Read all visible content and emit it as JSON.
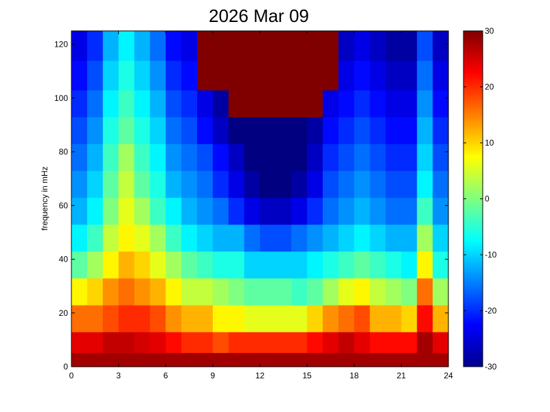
{
  "chart_data": {
    "type": "heatmap",
    "title": "2026 Mar 09",
    "xlabel": "",
    "ylabel": "frequency in mHz",
    "xlim": [
      0,
      24
    ],
    "ylim": [
      0,
      125
    ],
    "x_ticks": [
      0,
      3,
      6,
      9,
      12,
      15,
      18,
      21,
      24
    ],
    "y_ticks": [
      0,
      20,
      40,
      60,
      80,
      100,
      120
    ],
    "colorbar": {
      "range": [
        -30,
        30
      ],
      "ticks": [
        -30,
        -20,
        -10,
        0,
        10,
        20,
        30
      ],
      "colormap": "jet"
    },
    "x_bins": 24,
    "y_bins": 13,
    "y_bin_centers": [
      2.5,
      8,
      18,
      28,
      38,
      48,
      58,
      68,
      78,
      88,
      98,
      108,
      120
    ],
    "values": [
      [
        28,
        28,
        28,
        28,
        28,
        28,
        28,
        28,
        28,
        28,
        28,
        28,
        28,
        28,
        28,
        28,
        28,
        28,
        28,
        28,
        28,
        28,
        28,
        28
      ],
      [
        24,
        24,
        26,
        26,
        25,
        24,
        22,
        20,
        20,
        18,
        20,
        20,
        20,
        20,
        20,
        22,
        24,
        26,
        24,
        22,
        22,
        22,
        28,
        24
      ],
      [
        16,
        16,
        18,
        20,
        20,
        18,
        14,
        12,
        12,
        8,
        8,
        6,
        6,
        6,
        6,
        10,
        14,
        16,
        18,
        12,
        12,
        10,
        22,
        12
      ],
      [
        8,
        10,
        14,
        16,
        14,
        12,
        8,
        4,
        4,
        2,
        0,
        -2,
        -2,
        -2,
        -4,
        -2,
        2,
        6,
        8,
        4,
        2,
        0,
        16,
        2
      ],
      [
        -2,
        2,
        8,
        12,
        10,
        6,
        2,
        -2,
        -4,
        -6,
        -6,
        -10,
        -10,
        -10,
        -10,
        -8,
        -6,
        -4,
        -2,
        -4,
        -6,
        -8,
        8,
        -6
      ],
      [
        -8,
        -4,
        4,
        8,
        6,
        2,
        -4,
        -8,
        -10,
        -12,
        -12,
        -16,
        -18,
        -18,
        -16,
        -14,
        -12,
        -10,
        -8,
        -10,
        -12,
        -12,
        2,
        -10
      ],
      [
        -12,
        -8,
        0,
        6,
        2,
        -4,
        -8,
        -12,
        -14,
        -16,
        -20,
        -24,
        -26,
        -26,
        -24,
        -20,
        -16,
        -14,
        -12,
        -14,
        -16,
        -16,
        -4,
        -14
      ],
      [
        -14,
        -10,
        -2,
        4,
        -2,
        -6,
        -12,
        -14,
        -16,
        -20,
        -24,
        -28,
        -30,
        -30,
        -28,
        -24,
        -18,
        -16,
        -14,
        -16,
        -18,
        -18,
        -8,
        -16
      ],
      [
        -16,
        -12,
        -4,
        2,
        -4,
        -8,
        -14,
        -16,
        -18,
        -22,
        -26,
        -30,
        -30,
        -30,
        -30,
        -26,
        -20,
        -18,
        -16,
        -18,
        -20,
        -20,
        -10,
        -18
      ],
      [
        -18,
        -14,
        -6,
        -2,
        -6,
        -10,
        -16,
        -18,
        -22,
        -26,
        -30,
        -30,
        -30,
        -30,
        -30,
        -28,
        -22,
        -20,
        -18,
        -20,
        -22,
        -22,
        -12,
        -20
      ],
      [
        -20,
        -16,
        -8,
        -4,
        -8,
        -12,
        -18,
        -20,
        -24,
        -28,
        30,
        30,
        30,
        30,
        30,
        30,
        -24,
        -22,
        -20,
        -22,
        -24,
        -24,
        -14,
        -22
      ],
      [
        -22,
        -18,
        -10,
        -6,
        -10,
        -14,
        -20,
        -22,
        30,
        30,
        30,
        30,
        30,
        30,
        30,
        30,
        30,
        -24,
        -22,
        -24,
        -26,
        -26,
        -16,
        -24
      ],
      [
        -24,
        -20,
        -12,
        -8,
        -12,
        -16,
        -22,
        -24,
        30,
        30,
        30,
        30,
        30,
        30,
        30,
        30,
        30,
        -26,
        -24,
        -26,
        -28,
        -28,
        -18,
        -26
      ]
    ]
  }
}
